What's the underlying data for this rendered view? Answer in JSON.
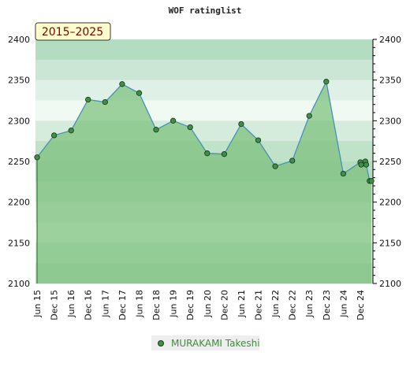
{
  "chart_data": {
    "type": "area",
    "title": "WOF ratinglist",
    "period_label": "2015–2025",
    "ylim": [
      2100,
      2400
    ],
    "y_ticks": [
      2100,
      2150,
      2200,
      2250,
      2300,
      2350,
      2400
    ],
    "x_tick_labels": [
      "Jun 15",
      "Dec 15",
      "Jun 16",
      "Dec 16",
      "Jun 17",
      "Dec 17",
      "Jun 18",
      "Dec 18",
      "Jun 19",
      "Dec 19",
      "Jun 20",
      "Dec 20",
      "Jun 21",
      "Dec 21",
      "Jun 22",
      "Dec 22",
      "Jun 23",
      "Dec 23",
      "Jun 24",
      "Dec 24"
    ],
    "grid": false,
    "legend": "bottom-center",
    "series": [
      {
        "name": "MURAKAMI Takeshi",
        "x": [
          0,
          1,
          2,
          3,
          4,
          5,
          6,
          7,
          8,
          9,
          10,
          11,
          12,
          13,
          14,
          15,
          16,
          17,
          18,
          19,
          19.05,
          19.3,
          19.35,
          19.55,
          19.65
        ],
        "values": [
          2255,
          2282,
          2288,
          2326,
          2323,
          2345,
          2334,
          2289,
          2300,
          2292,
          2260,
          2259,
          2296,
          2276,
          2244,
          2251,
          2306,
          2348,
          2235,
          2249,
          2246,
          2250,
          2246,
          2226,
          2226
        ]
      }
    ],
    "colors": {
      "area_fill": "#7bbf7b",
      "line": "#4a90b8",
      "marker_fill": "#3f8f4a",
      "marker_stroke": "#1c3d1c",
      "badge_fill": "#ffffcc",
      "legend_bg": "#eeeeee"
    }
  }
}
